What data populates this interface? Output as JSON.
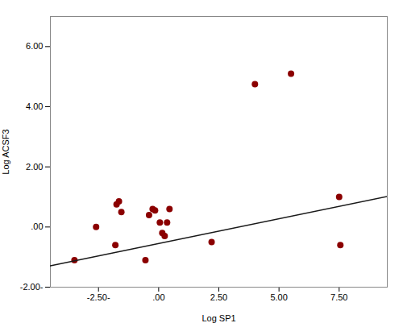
{
  "chart_data": {
    "type": "scatter",
    "xlabel": "Log SP1",
    "ylabel": "Log ACSF3",
    "series": [
      {
        "type": "scatter",
        "color": "#8B0000",
        "x": [
          -3.5,
          -2.6,
          -1.8,
          -1.75,
          -1.65,
          -1.55,
          -0.55,
          -0.4,
          -0.25,
          -0.15,
          0.05,
          0.15,
          0.25,
          0.35,
          0.45,
          2.2,
          4.0,
          5.5,
          7.5,
          7.55
        ],
        "values": [
          -1.1,
          0.0,
          -0.6,
          0.75,
          0.85,
          0.5,
          -1.1,
          0.4,
          0.6,
          0.55,
          0.15,
          -0.2,
          -0.3,
          0.15,
          0.6,
          -0.5,
          4.75,
          5.1,
          1.0,
          -0.6
        ]
      },
      {
        "type": "line",
        "color": "#1a1a1a",
        "x": [
          -4.5,
          9.5
        ],
        "values": [
          -1.2925,
          1.0175
        ]
      }
    ],
    "xlim": [
      -4.5,
      9.5
    ],
    "ylim": [
      -2.0,
      7.0
    ],
    "xticks": [
      {
        "value": -2.5,
        "label": "-2.50-"
      },
      {
        "value": 0.0,
        "label": ".00"
      },
      {
        "value": 2.5,
        "label": "2.50"
      },
      {
        "value": 5.0,
        "label": "5.00"
      },
      {
        "value": 7.5,
        "label": "7.50"
      }
    ],
    "yticks": [
      {
        "value": -2.0,
        "label": "-2.00-"
      },
      {
        "value": 0.0,
        "label": ".00"
      },
      {
        "value": 2.0,
        "label": "2.00"
      },
      {
        "value": 4.0,
        "label": "4.00"
      },
      {
        "value": 6.0,
        "label": "6.00"
      }
    ],
    "grid": false
  }
}
